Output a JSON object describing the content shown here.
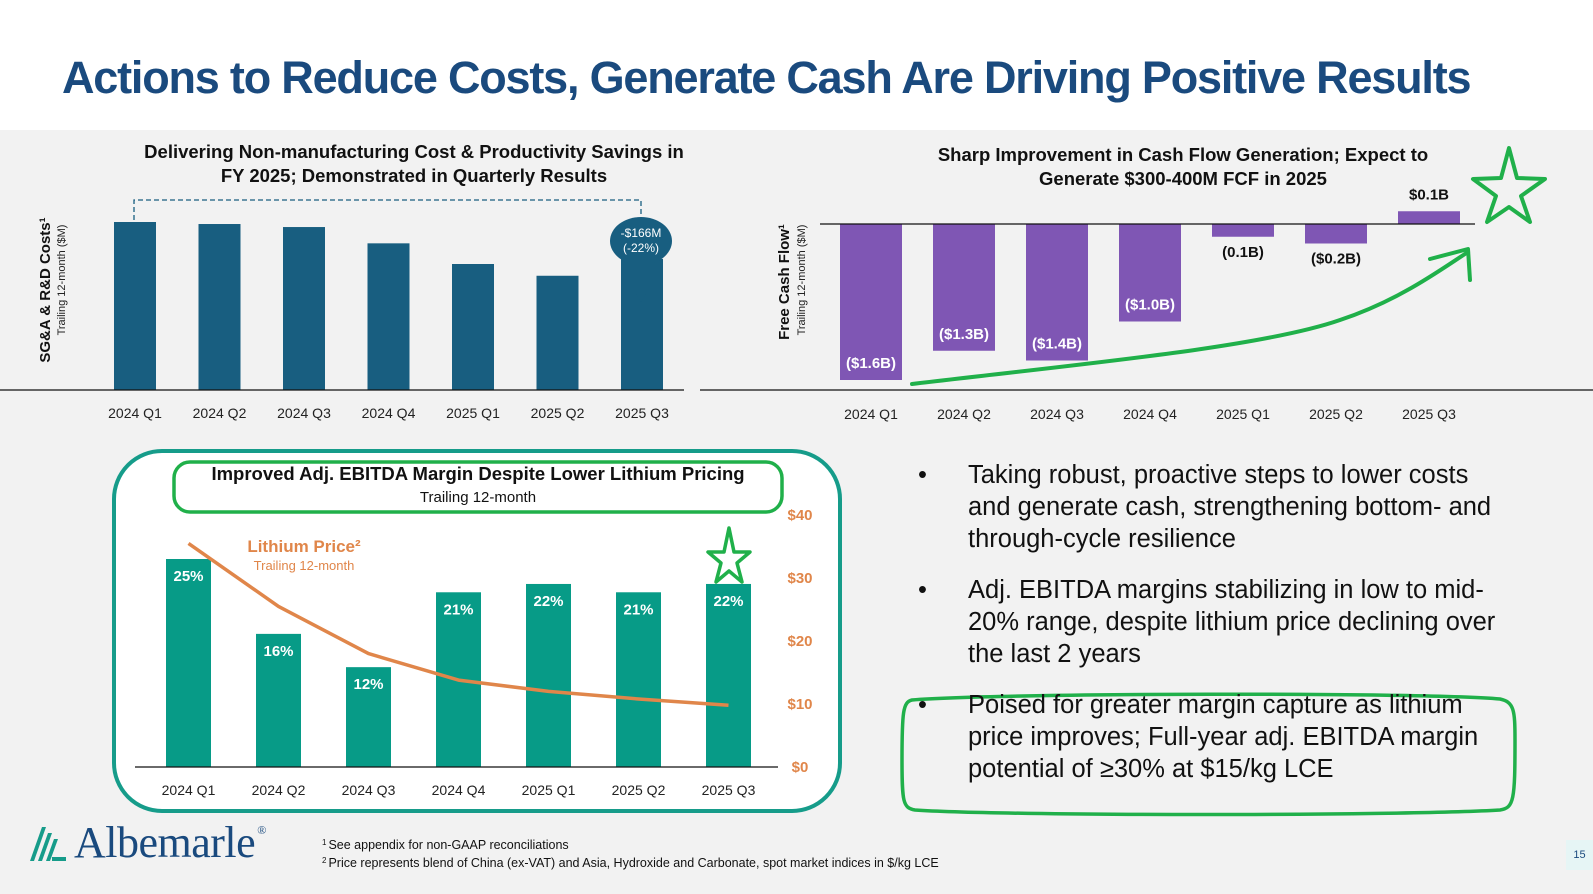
{
  "page": {
    "title": "Actions to Reduce Costs, Generate Cash Are Driving Positive Results",
    "page_number": "15",
    "logo_text": "Albemarle",
    "logo_registered": "®",
    "colors": {
      "title_blue": "#1a4a7e",
      "sga_bar": "#185e80",
      "fcf_bar": "#7f56b4",
      "ebitda_bar": "#079b87",
      "lithium_line": "#e0864a",
      "highlight_green": "#20b04a",
      "panel_border": "#169c8a"
    }
  },
  "bullets": [
    "Taking robust, proactive steps to lower costs and generate cash, strengthening bottom- and through-cycle resilience",
    "Adj. EBITDA margins stabilizing in low to mid-20% range, despite lithium price declining over the last 2 years",
    "Poised for greater margin capture as lithium price improves; Full-year adj. EBITDA margin potential of ≥30% at $15/kg LCE"
  ],
  "bullet_symbol": "•",
  "footnotes": [
    {
      "mark": "1",
      "text": "See appendix for non-GAAP reconciliations"
    },
    {
      "mark": "2",
      "text": "Price represents blend of China (ex-VAT) and Asia, Hydroxide and Carbonate, spot market indices in $/kg LCE"
    }
  ],
  "chart_data": [
    {
      "type": "bar",
      "title": "Delivering Non-manufacturing Cost & Productivity Savings in FY 2025; Demonstrated in Quarterly Results",
      "title_lines": [
        "Delivering Non-manufacturing Cost & Productivity Savings in",
        "FY 2025; Demonstrated in Quarterly Results"
      ],
      "ylabel": "SG&A & R&D Costs¹",
      "ylabel_sub": "Trailing 12-month ($M)",
      "categories": [
        "2024 Q1",
        "2024 Q2",
        "2024 Q3",
        "2024 Q4",
        "2025 Q1",
        "2025 Q2",
        "2025 Q3"
      ],
      "values": [
        755,
        745,
        732,
        659,
        566,
        494,
        589
      ],
      "values_note": "approximate, unlabeled; Q1'24 to Q3'25 decline = $166M",
      "values_relative": [
        1.0,
        0.988,
        0.97,
        0.873,
        0.75,
        0.68,
        0.78
      ],
      "callout_line1": "-$166M",
      "callout_line2": "(-22%)",
      "grid": false
    },
    {
      "type": "bar",
      "title": "Sharp Improvement in Cash Flow Generation; Expect to Generate $300-400M FCF in 2025",
      "title_lines": [
        "Sharp Improvement in Cash Flow Generation; Expect to",
        "Generate $300-400M FCF in 2025"
      ],
      "ylabel": "Free Cash Flow¹",
      "ylabel_sub": "Trailing 12-month ($M)",
      "categories": [
        "2024 Q1",
        "2024 Q2",
        "2024 Q3",
        "2024 Q4",
        "2025 Q1",
        "2025 Q2",
        "2025 Q3"
      ],
      "values": [
        -1.6,
        -1.3,
        -1.4,
        -1.0,
        -0.1,
        -0.2,
        0.1
      ],
      "units": "$B",
      "data_labels": [
        "($1.6B)",
        "($1.3B)",
        "($1.4B)",
        "($1.0B)",
        "(0.1B)",
        "($0.2B)",
        "$0.1B"
      ],
      "ylim": [
        -1.6,
        0.1
      ],
      "annotations": [
        "green upward trend arrow",
        "green star"
      ],
      "grid": false
    },
    {
      "type": "bar",
      "title": "Improved Adj. EBITDA Margin Despite Lower Lithium Pricing",
      "subtitle": "Trailing 12-month",
      "categories": [
        "2024 Q1",
        "2024 Q2",
        "2024 Q3",
        "2024 Q4",
        "2025 Q1",
        "2025 Q2",
        "2025 Q3"
      ],
      "series": [
        {
          "name": "Adj. EBITDA Margin",
          "type": "bar",
          "values": [
            25,
            16,
            12,
            21,
            22,
            21,
            22
          ],
          "data_labels": [
            "25%",
            "16%",
            "12%",
            "21%",
            "22%",
            "21%",
            "22%"
          ]
        },
        {
          "name": "Lithium Price²",
          "sub": "Trailing 12-month",
          "type": "line",
          "axis": "right",
          "values": [
            35.5,
            25.5,
            18,
            13.8,
            12,
            10.8,
            9.8
          ]
        }
      ],
      "y_right_ticks": [
        "$40",
        "$30",
        "$20",
        "$10",
        "$0"
      ],
      "y_right_lim": [
        0,
        40
      ],
      "annotations": [
        "green star"
      ],
      "grid": false
    }
  ]
}
